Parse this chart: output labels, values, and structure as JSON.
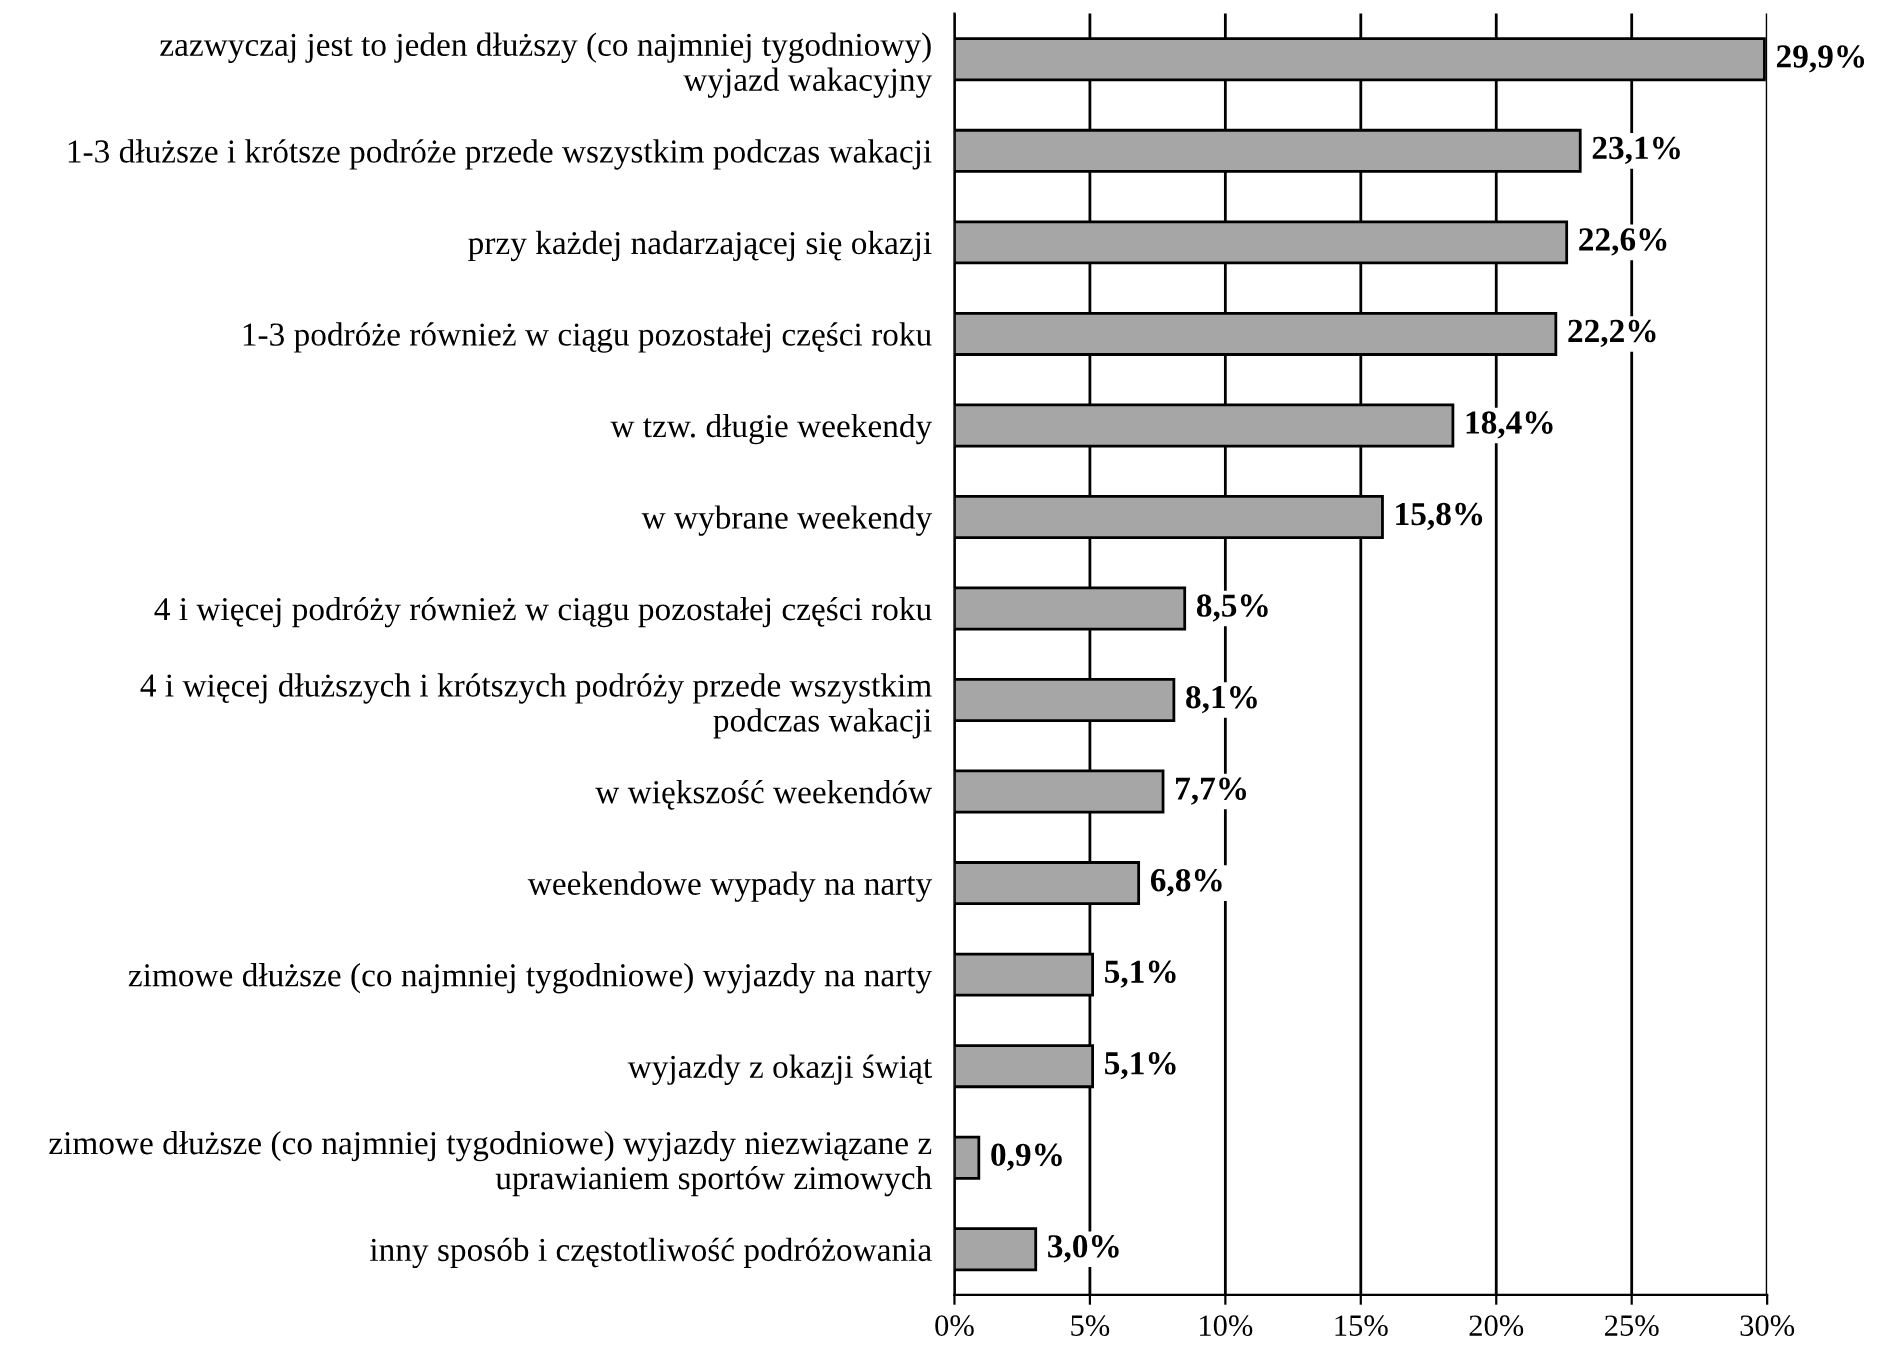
{
  "chart_data": {
    "type": "bar",
    "orientation": "horizontal",
    "categories": [
      "zazwyczaj jest to jeden dłuższy (co najmniej tygodniowy) wyjazd wakacyjny",
      "1-3 dłuższe i krótsze podróże przede wszystkim podczas wakacji",
      "przy każdej nadarzającej się okazji",
      "1-3 podróże również w ciągu pozostałej części roku",
      "w tzw. długie weekendy",
      "w wybrane weekendy",
      "4 i więcej podróży również w ciągu pozostałej części roku",
      "4 i więcej dłuższych i krótszych podróży przede wszystkim podczas wakacji",
      "w większość weekendów",
      "weekendowe wypady na narty",
      "zimowe dłuższe (co najmniej tygodniowe) wyjazdy na narty",
      "wyjazdy z okazji świąt",
      "zimowe dłuższe (co najmniej tygodniowe) wyjazdy niezwiązane z uprawianiem sportów zimowych",
      "inny sposób i częstotliwość podróżowania"
    ],
    "values": [
      29.9,
      23.1,
      22.6,
      22.2,
      18.4,
      15.8,
      8.5,
      8.1,
      7.7,
      6.8,
      5.1,
      5.1,
      0.9,
      3.0
    ],
    "value_labels": [
      "29,9%",
      "23,1%",
      "22,6%",
      "22,2%",
      "18,4%",
      "15,8%",
      "8,5%",
      "8,1%",
      "7,7%",
      "6,8%",
      "5,1%",
      "5,1%",
      "0,9%",
      "3,0%"
    ],
    "color": "#a6a6a6",
    "xlim": [
      0,
      30
    ],
    "xticks": [
      {
        "value": 0,
        "label": "0%"
      },
      {
        "value": 5,
        "label": "5%"
      },
      {
        "value": 10,
        "label": "10%"
      },
      {
        "value": 15,
        "label": "15%"
      },
      {
        "value": 20,
        "label": "20%"
      },
      {
        "value": 25,
        "label": "25%"
      },
      {
        "value": 30,
        "label": "30%"
      }
    ],
    "grid": "x"
  }
}
